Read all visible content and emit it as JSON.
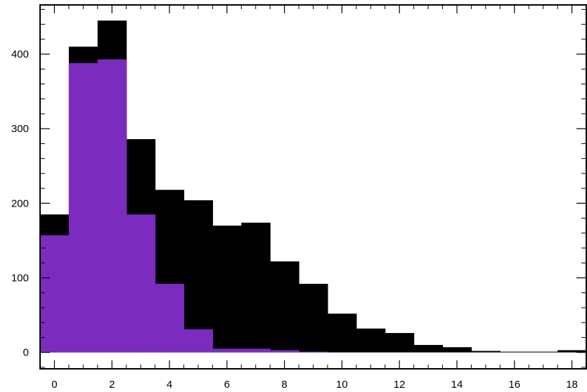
{
  "chart_data": {
    "type": "bar",
    "bin_edges": [
      -0.5,
      0.5,
      1.5,
      2.5,
      3.5,
      4.5,
      5.5,
      6.5,
      7.5,
      8.5,
      9.5,
      10.5,
      11.5,
      12.5,
      13.5,
      14.5,
      15.5,
      16.5,
      17.5,
      18.5
    ],
    "series": [
      {
        "color": "#000000",
        "values": [
          185,
          410,
          445,
          286,
          218,
          204,
          170,
          174,
          122,
          92,
          52,
          32,
          26,
          10,
          7,
          2,
          1,
          1,
          3
        ]
      },
      {
        "color": "#7b2cbf",
        "values": [
          157,
          388,
          393,
          185,
          92,
          31,
          5,
          5,
          3,
          1,
          0,
          0,
          0,
          0,
          0,
          0,
          0,
          0,
          0
        ]
      }
    ],
    "xlim": [
      -0.5,
      18.5
    ],
    "ylim": [
      -22,
      466
    ],
    "x_ticks": [
      "0",
      "2",
      "4",
      "6",
      "8",
      "10",
      "12",
      "14",
      "16",
      "18"
    ],
    "x_tick_values": [
      0,
      2,
      4,
      6,
      8,
      10,
      12,
      14,
      16,
      18
    ],
    "y_ticks": [
      "0",
      "100",
      "200",
      "300",
      "400"
    ],
    "y_tick_values": [
      0,
      100,
      200,
      300,
      400
    ],
    "title": "",
    "xlabel": "",
    "ylabel": "",
    "grid": false,
    "legend": "none"
  }
}
